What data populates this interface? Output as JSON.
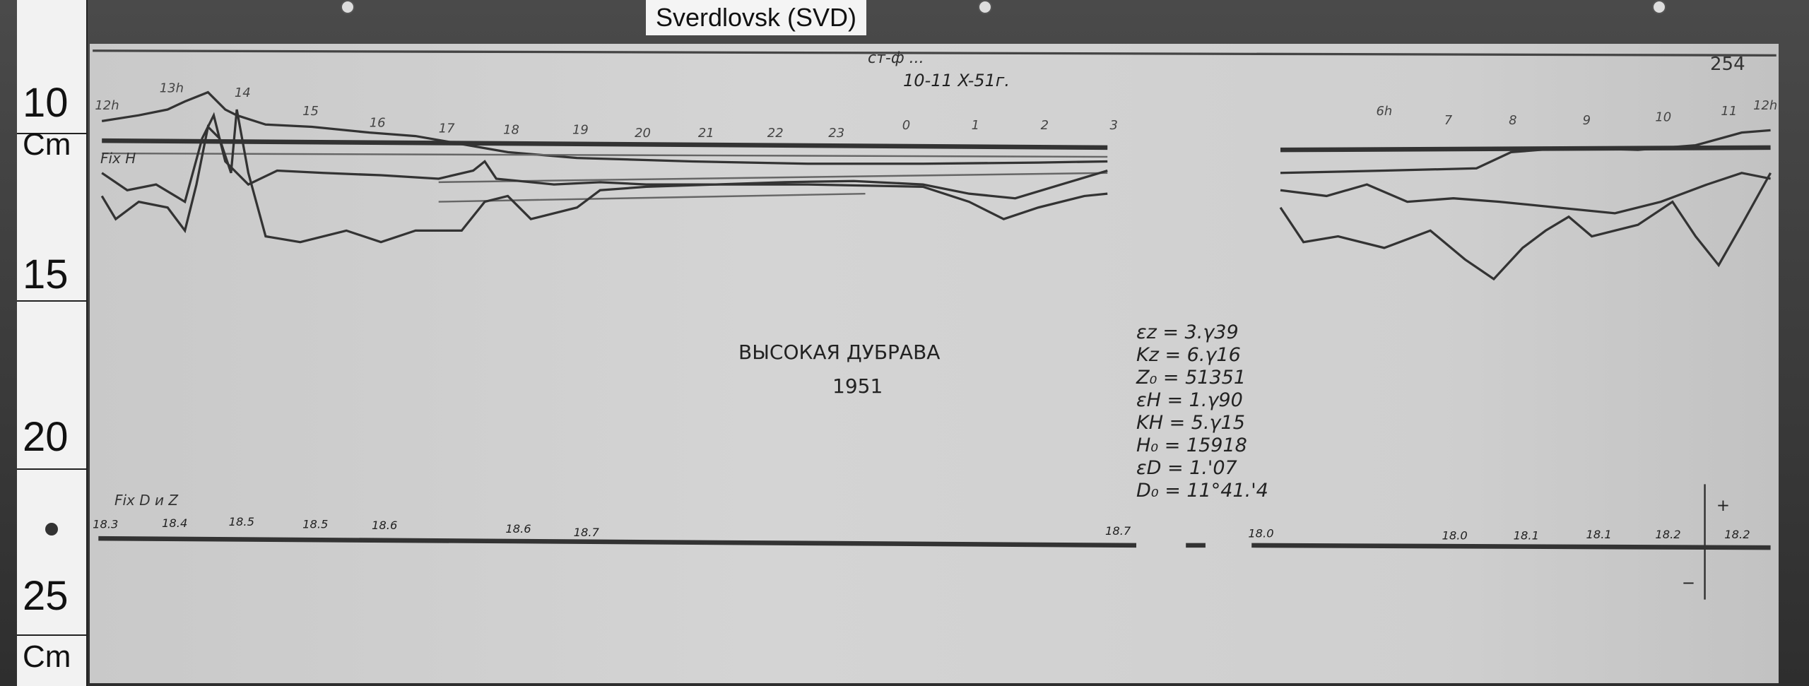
{
  "tag": "Sverdlovsk (SVD)",
  "ruler": {
    "labels": [
      "10",
      "Cm",
      "15",
      "20",
      "25",
      "Cm"
    ]
  },
  "sheet": {
    "number": "254",
    "header": "ст-ф ...",
    "date": "10-11 X-51г.",
    "station": "ВЫСОКАЯ ДУБРАВА",
    "year": "1951",
    "fix_h": "Fix H",
    "fix_dz": "Fix D и Z",
    "hours_top": [
      "12h",
      "13h",
      "14",
      "15",
      "16",
      "17",
      "18",
      "19",
      "20",
      "21",
      "22",
      "23",
      "0",
      "1",
      "2",
      "3",
      "6h",
      "7",
      "8",
      "9",
      "10",
      "11",
      "12h"
    ],
    "baseline_labels": [
      "18.3",
      "18.4",
      "18.5",
      "18.5",
      "18.6",
      "18.6",
      "18.7",
      "18.7",
      "18.0",
      "18.0",
      "18.1",
      "18.1",
      "18.2",
      "18.2"
    ],
    "params": [
      "εz = 3.γ39",
      "Kz = 6.γ16",
      "Z₀ = 51351",
      "εH = 1.γ90",
      "KH = 5.γ15",
      "H₀ = 15918",
      "εD = 1.'07",
      "D₀ = 11°41.'4"
    ],
    "sign_plus": "+",
    "sign_minus": "−"
  }
}
